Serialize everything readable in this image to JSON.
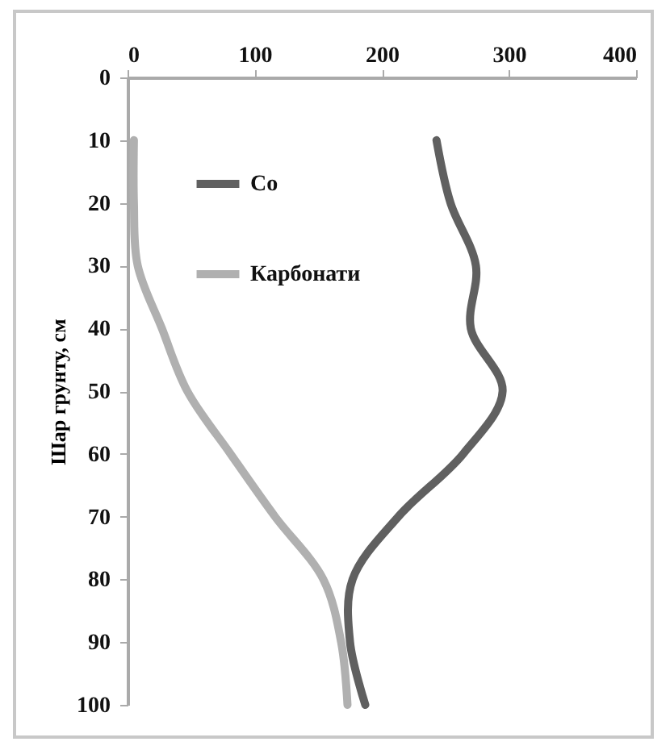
{
  "chart_data": {
    "type": "line",
    "ylabel": "Шар грунту, см",
    "series": [
      {
        "name": "Co",
        "color": "#606060",
        "x": [
          243,
          254,
          274,
          270,
          295,
          264,
          213,
          177,
          175,
          187
        ],
        "values": [
          10,
          20,
          30,
          40,
          50,
          60,
          70,
          80,
          90,
          100
        ]
      },
      {
        "name": "Карбонати",
        "color": "#b0b0b0",
        "x": [
          5,
          5,
          8,
          27,
          47,
          81,
          116,
          154,
          168,
          173
        ],
        "values": [
          10,
          20,
          30,
          40,
          50,
          60,
          70,
          80,
          90,
          100
        ]
      }
    ],
    "xlim": [
      0,
      400
    ],
    "xticks": [
      0,
      100,
      200,
      300,
      400
    ],
    "ylim": [
      100,
      0
    ],
    "yticks": [
      0,
      10,
      20,
      30,
      40,
      50,
      60,
      70,
      80,
      90,
      100
    ],
    "grid": false,
    "legend": "left",
    "marker": "none",
    "line_style": "solid"
  }
}
